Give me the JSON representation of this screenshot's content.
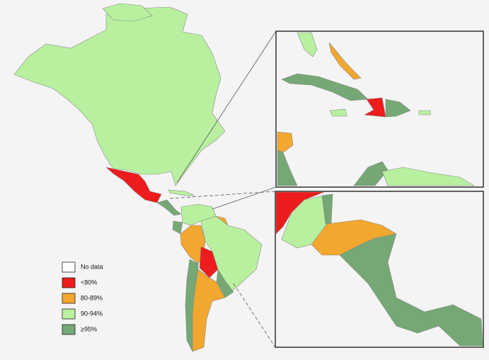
{
  "legend": {
    "items": [
      {
        "label": "No data",
        "color": "#ffffff"
      },
      {
        "label": "<80%",
        "color": "#ee1c1c"
      },
      {
        "label": "80-89%",
        "color": "#f2a72e"
      },
      {
        "label": "90-94%",
        "color": "#b8f0a0"
      },
      {
        "label": "≥95%",
        "color": "#75a874"
      }
    ]
  }
}
